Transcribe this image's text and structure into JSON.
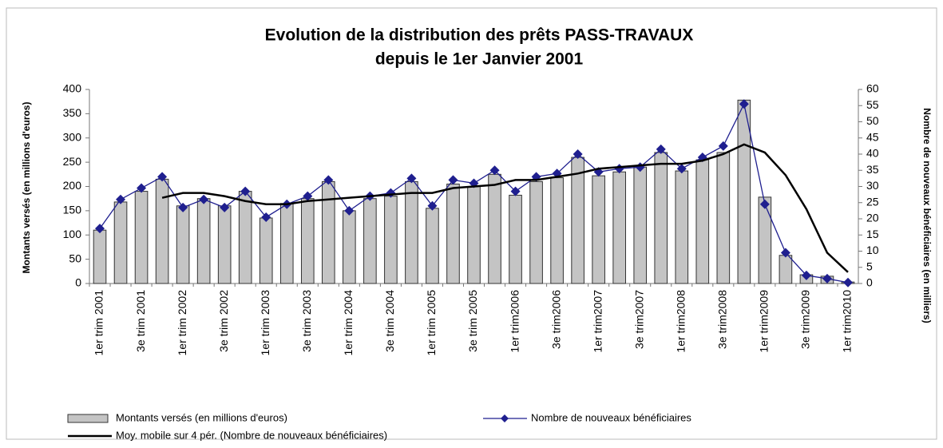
{
  "chart_data": {
    "type": "combo",
    "title": "Evolution de la distribution des prêts PASS-TRAVAUX",
    "subtitle": "depuis le 1er Janvier 2001",
    "y_label": "Montants versés (en millions d'euros)",
    "y2_label": "Nombre de nouveaux bénéficiaires (en milliers)",
    "categories": [
      "1er trim 2001",
      null,
      "3e trim 2001",
      null,
      "1er trim 2002",
      null,
      "3e trim 2002",
      null,
      "1er trim 2003",
      null,
      "3e trim 2003",
      null,
      "1er trim 2004",
      null,
      "3e trim 2004",
      null,
      "1er trim 2005",
      null,
      "3e trim 2005",
      null,
      "1er trim2006",
      null,
      "3e trim2006",
      null,
      "1er trim2007",
      null,
      "3e trim2007",
      null,
      "1er trim2008",
      null,
      "3e trim2008",
      null,
      "1er trim2009",
      null,
      "3e trim2009",
      null,
      "1er trim2010"
    ],
    "ylim": [
      0,
      400
    ],
    "yticks": [
      0,
      50,
      100,
      150,
      200,
      250,
      300,
      350,
      400
    ],
    "y2lim": [
      0,
      60
    ],
    "y2ticks": [
      0,
      5,
      10,
      15,
      20,
      25,
      30,
      35,
      40,
      45,
      50,
      55,
      60
    ],
    "series": [
      {
        "name": "Montants versés (en millions d'euros)",
        "type": "bar",
        "color": "#c4c4c4",
        "values": [
          110,
          168,
          190,
          215,
          160,
          175,
          160,
          190,
          135,
          165,
          175,
          210,
          150,
          175,
          180,
          210,
          155,
          205,
          200,
          225,
          182,
          210,
          218,
          260,
          222,
          230,
          240,
          270,
          232,
          255,
          270,
          378,
          178,
          58,
          18,
          15,
          3
        ]
      },
      {
        "name": "Nombre de nouveaux bénéficiaires",
        "type": "line",
        "axis": "y2",
        "color": "#1f1f8f",
        "values": [
          17,
          26,
          29.5,
          33,
          23.5,
          26,
          23.5,
          28.5,
          20.5,
          24.5,
          27,
          32,
          22.5,
          27,
          28,
          32.5,
          24,
          32,
          31,
          35,
          28.5,
          33,
          34,
          40,
          34.5,
          35.5,
          36,
          41.5,
          35.5,
          39,
          42.5,
          55.5,
          24.5,
          9.5,
          2.5,
          1.5,
          0.3
        ]
      },
      {
        "name": "Moy. mobile sur 4 pér. (Nombre de nouveaux bénéficiaires)",
        "type": "line",
        "axis": "y2",
        "color": "#000000",
        "values": [
          null,
          null,
          null,
          26.5,
          28,
          28,
          27,
          25.5,
          24.5,
          24.5,
          25.5,
          26,
          26.5,
          27,
          27.5,
          28,
          28,
          29.5,
          30,
          30.5,
          32,
          32,
          33,
          34,
          35.5,
          36,
          36.5,
          37,
          37,
          38,
          40,
          43,
          40.5,
          33.5,
          23,
          9.5,
          3.5
        ]
      }
    ]
  }
}
